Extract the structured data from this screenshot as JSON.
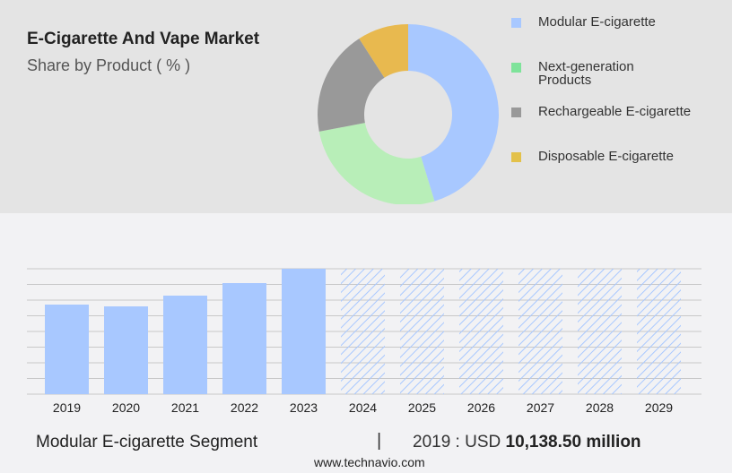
{
  "header": {
    "title": "E-Cigarette And Vape Market",
    "subtitle": "Share by Product ( % )"
  },
  "chart_data": [
    {
      "type": "pie",
      "donut": true,
      "categories": [
        "Modular E-cigarette",
        "Next-generation Products",
        "Rechargeable E-cigarette",
        "Disposable E-cigarette"
      ],
      "values": [
        45.3,
        26.7,
        18.9,
        9.1
      ],
      "colors": [
        "#a8c8ff",
        "#b8eeb8",
        "#999999",
        "#e8b94f"
      ],
      "legend_colors": [
        "#a8c8ff",
        "#7ee39a",
        "#999999",
        "#e3c14a"
      ],
      "legend": "right"
    },
    {
      "type": "bar",
      "categories": [
        "2019",
        "2020",
        "2021",
        "2022",
        "2023",
        "2024",
        "2025",
        "2026",
        "2027",
        "2028",
        "2029"
      ],
      "values": [
        10138.5,
        9936,
        11152,
        12572,
        14194,
        null,
        null,
        null,
        null,
        null,
        null
      ],
      "forecast": [
        "2024",
        "2025",
        "2026",
        "2027",
        "2028",
        "2029"
      ],
      "ylim": [
        0,
        14194
      ],
      "grid": true,
      "color": "#a8c8ff"
    }
  ],
  "footer": {
    "segment": "Modular E-cigarette Segment",
    "separator": "|",
    "year_label": "2019 : USD",
    "value": "10,138.50 million",
    "url": "www.technavio.com"
  }
}
